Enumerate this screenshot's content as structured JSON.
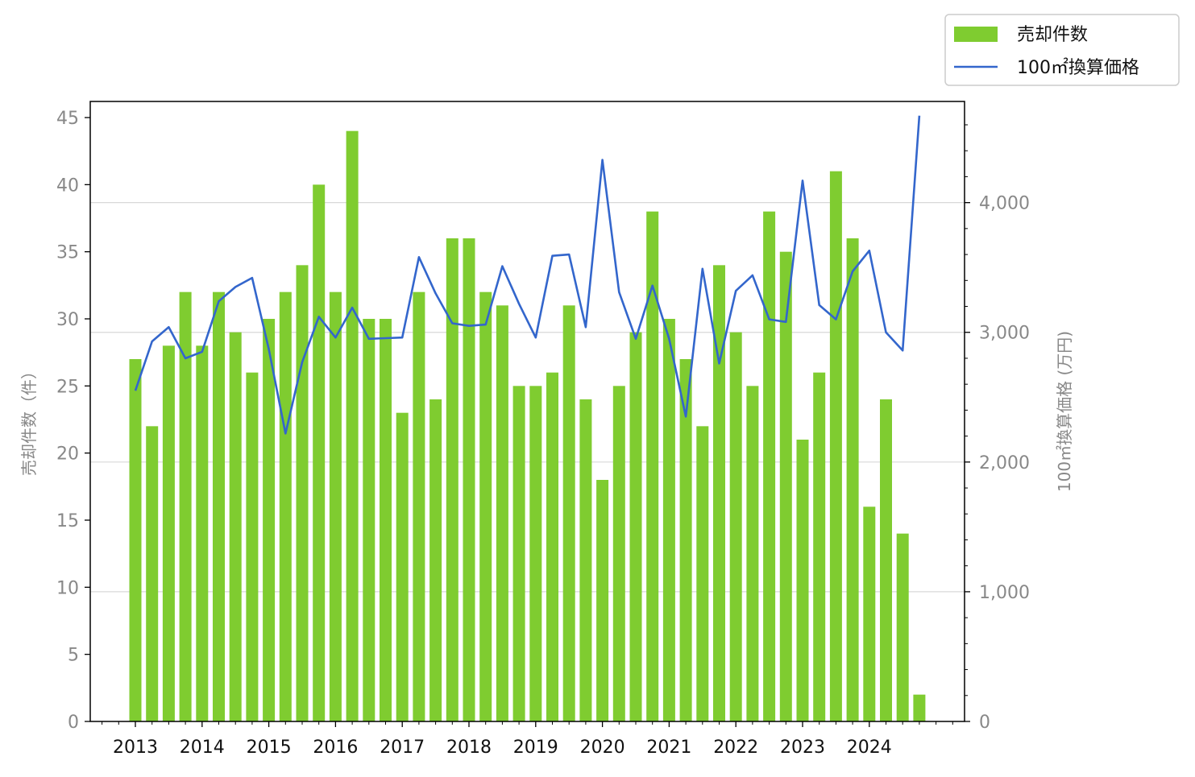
{
  "colors": {
    "bar": "#7fcc30",
    "line": "#3366cc",
    "grid": "#d8d8d8",
    "axis": "#000000",
    "tick_text_side": "#888888",
    "tick_text_bottom": "#111111"
  },
  "legend": {
    "items": [
      {
        "label": "売却件数",
        "kind": "bar"
      },
      {
        "label": "100㎡換算価格",
        "kind": "line"
      }
    ],
    "placement": "top-right-outside"
  },
  "chart_data": {
    "type": "bar+line",
    "title": "",
    "xlabel": "",
    "x_tick_labels": [
      "2013",
      "2014",
      "2015",
      "2016",
      "2017",
      "2018",
      "2019",
      "2020",
      "2021",
      "2022",
      "2023",
      "2024"
    ],
    "y_left": {
      "label": "売却件数（件）",
      "ylim": [
        0,
        46.2
      ],
      "ticks": [
        0,
        5,
        10,
        15,
        20,
        25,
        30,
        35,
        40,
        45
      ],
      "tick_labels": [
        "0",
        "5",
        "10",
        "15",
        "20",
        "25",
        "30",
        "35",
        "40",
        "45"
      ]
    },
    "y_right": {
      "label": "100㎡換算価格 (万円)",
      "ylim": [
        0,
        4780
      ],
      "ticks": [
        0,
        1000,
        2000,
        3000,
        4000
      ],
      "tick_labels": [
        "0",
        "1,000",
        "2,000",
        "3,000",
        "4,000"
      ]
    },
    "grid": {
      "horizontal": true,
      "axis": "right"
    },
    "series": [
      {
        "name": "売却件数",
        "type": "bar",
        "axis": "left",
        "values": [
          27,
          22,
          28,
          32,
          28,
          32,
          29,
          26,
          30,
          32,
          34,
          40,
          32,
          44,
          30,
          30,
          23,
          32,
          24,
          36,
          36,
          32,
          31,
          25,
          25,
          26,
          31,
          24,
          18,
          25,
          29,
          38,
          30,
          27,
          22,
          34,
          29,
          25,
          38,
          35,
          21,
          26,
          41,
          36,
          16,
          24,
          14,
          2
        ]
      },
      {
        "name": "100㎡換算価格",
        "type": "line",
        "axis": "right",
        "values": [
          2550,
          2930,
          3040,
          2800,
          2850,
          3240,
          3350,
          3420,
          2870,
          2220,
          2770,
          3120,
          2960,
          3190,
          2950,
          2955,
          2960,
          3580,
          3300,
          3070,
          3050,
          3060,
          3510,
          3220,
          2960,
          3590,
          3600,
          3040,
          4330,
          3310,
          2950,
          3360,
          2950,
          2350,
          3490,
          2760,
          3320,
          3440,
          3100,
          3080,
          4170,
          3210,
          3100,
          3470,
          3630,
          3000,
          2860,
          4670
        ]
      }
    ]
  }
}
